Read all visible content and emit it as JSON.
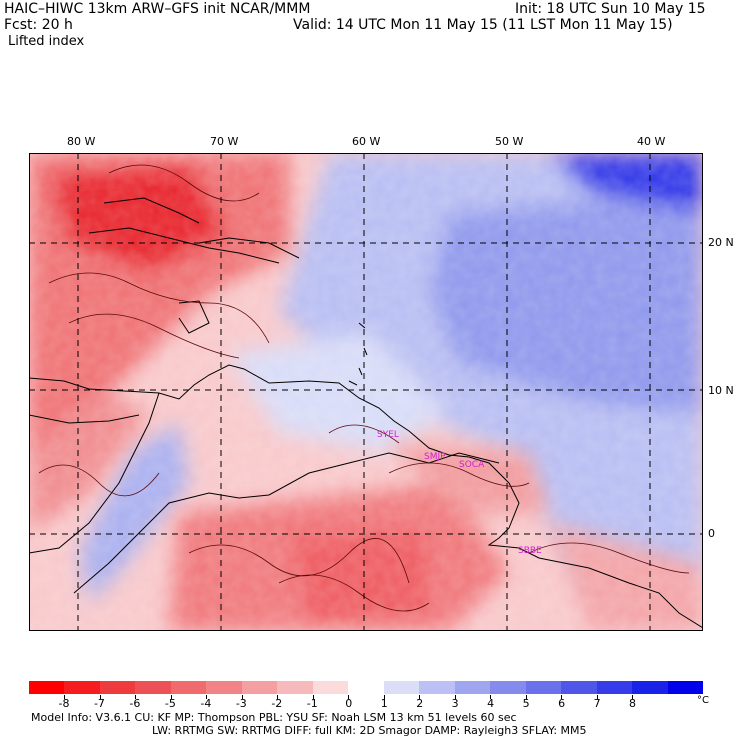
{
  "header": {
    "title": "HAIC–HIWC 13km ARW–GFS init   NCAR/MMM",
    "init": "Init: 18 UTC Sun 10 May 15",
    "fcst": "Fcst:   20 h",
    "valid": "Valid: 14 UTC Mon 11 May 15 (11 LST Mon 11 May 15)",
    "field": "Lifted index"
  },
  "map": {
    "lon_labels": [
      "80 W",
      "70 W",
      "60 W",
      "50 W",
      "40 W"
    ],
    "lat_labels": [
      "20 N",
      "10 N",
      "0"
    ],
    "stations": [
      "SYEL",
      "SMJP",
      "SOCA",
      "SBBE"
    ],
    "colors": {
      "unstable_strong": "#e8242a",
      "unstable": "#f2787a",
      "unstable_weak": "#f8c8ca",
      "neutral": "#ffffff",
      "stable_weak": "#c8ccf4",
      "stable": "#8c95ec",
      "stable_strong": "#1d1fe8",
      "coast": "#000000",
      "contour": "#5a0a0a",
      "station": "#d020d0"
    }
  },
  "colorbar": {
    "ticks": [
      "-8",
      "-7",
      "-6",
      "-5",
      "-4",
      "-3",
      "-2",
      "-1",
      "0",
      "1",
      "2",
      "3",
      "4",
      "5",
      "6",
      "7",
      "8"
    ],
    "unit": "°C",
    "colors": [
      "#ff0000",
      "#f51d20",
      "#ee3c3e",
      "#ec5255",
      "#ef6b6e",
      "#f28487",
      "#f49fa1",
      "#f7babc",
      "#fbdbdc",
      "#ffffff",
      "#dcdef8",
      "#bdc0f4",
      "#a0a5f0",
      "#858bed",
      "#6a71ea",
      "#5057e8",
      "#353ce8",
      "#1a22e8",
      "#0000ea"
    ]
  },
  "footer": {
    "line1": "Model Info: V3.6.1     CU: KF     MP: Thompson     PBL: YSU      SF: Noah LSM     13 km    51 levels   60 sec",
    "line2": "LW: RRTMG    SW: RRTMG   DIFF: full    KM: 2D Smagor DAMP: Rayleigh3   SFLAY: MM5"
  }
}
